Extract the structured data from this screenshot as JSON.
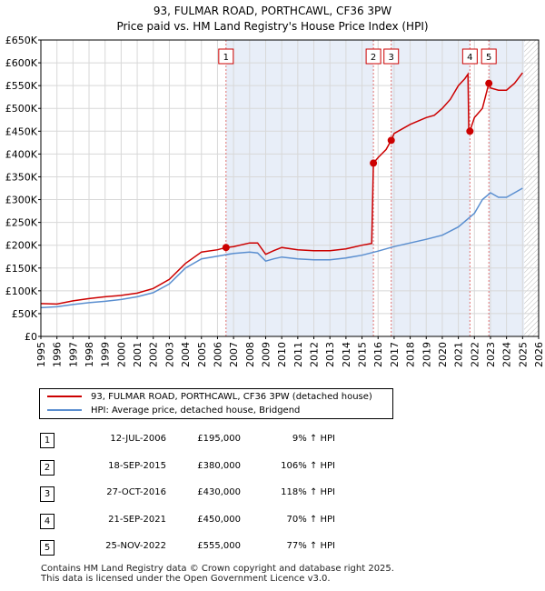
{
  "chart_data": {
    "type": "line",
    "title_lines": [
      "93, FULMAR ROAD, PORTHCAWL, CF36 3PW",
      "Price paid vs. HM Land Registry's House Price Index (HPI)"
    ],
    "xlim": [
      1995,
      2026
    ],
    "ylim": [
      0,
      650000
    ],
    "y_ticks": [
      0,
      50000,
      100000,
      150000,
      200000,
      250000,
      300000,
      350000,
      400000,
      450000,
      500000,
      550000,
      600000,
      650000
    ],
    "y_tick_labels": [
      "£0",
      "£50K",
      "£100K",
      "£150K",
      "£200K",
      "£250K",
      "£300K",
      "£350K",
      "£400K",
      "£450K",
      "£500K",
      "£550K",
      "£600K",
      "£650K"
    ],
    "x_ticks": [
      1995,
      1996,
      1997,
      1998,
      1999,
      2000,
      2001,
      2002,
      2003,
      2004,
      2005,
      2006,
      2007,
      2008,
      2009,
      2010,
      2011,
      2012,
      2013,
      2014,
      2015,
      2016,
      2017,
      2018,
      2019,
      2020,
      2021,
      2022,
      2023,
      2024,
      2025,
      2026
    ],
    "shaded_ranges": [
      [
        2006.53,
        2015.71
      ],
      [
        2016.82,
        2021.72
      ],
      [
        2022.9,
        2025.1
      ]
    ],
    "future_hatch_start": 2025.1,
    "series": [
      {
        "name": "93, FULMAR ROAD, PORTHCAWL, CF36 3PW (detached house)",
        "color": "#cc0000",
        "points": [
          [
            1995.0,
            72000
          ],
          [
            1996.0,
            71000
          ],
          [
            1997.0,
            78000
          ],
          [
            1998.0,
            83000
          ],
          [
            1999.0,
            87000
          ],
          [
            2000.0,
            90000
          ],
          [
            2001.0,
            95000
          ],
          [
            2002.0,
            105000
          ],
          [
            2003.0,
            125000
          ],
          [
            2004.0,
            160000
          ],
          [
            2005.0,
            185000
          ],
          [
            2006.0,
            190000
          ],
          [
            2006.53,
            195000
          ],
          [
            2007.0,
            197000
          ],
          [
            2008.0,
            205000
          ],
          [
            2008.5,
            205000
          ],
          [
            2009.0,
            180000
          ],
          [
            2009.5,
            188000
          ],
          [
            2010.0,
            195000
          ],
          [
            2011.0,
            190000
          ],
          [
            2012.0,
            188000
          ],
          [
            2013.0,
            188000
          ],
          [
            2014.0,
            192000
          ],
          [
            2015.0,
            200000
          ],
          [
            2015.6,
            204000
          ],
          [
            2015.71,
            380000
          ],
          [
            2016.0,
            392000
          ],
          [
            2016.5,
            410000
          ],
          [
            2016.82,
            430000
          ],
          [
            2017.0,
            445000
          ],
          [
            2018.0,
            465000
          ],
          [
            2019.0,
            480000
          ],
          [
            2019.5,
            485000
          ],
          [
            2020.0,
            500000
          ],
          [
            2020.5,
            520000
          ],
          [
            2021.0,
            550000
          ],
          [
            2021.4,
            565000
          ],
          [
            2021.6,
            575000
          ],
          [
            2021.65,
            450000
          ],
          [
            2021.72,
            450000
          ],
          [
            2022.0,
            480000
          ],
          [
            2022.5,
            500000
          ],
          [
            2022.9,
            555000
          ],
          [
            2023.0,
            545000
          ],
          [
            2023.5,
            540000
          ],
          [
            2024.0,
            540000
          ],
          [
            2024.5,
            555000
          ],
          [
            2025.0,
            578000
          ]
        ]
      },
      {
        "name": "HPI: Average price, detached house, Bridgend",
        "color": "#5b8fd0",
        "points": [
          [
            1995.0,
            63000
          ],
          [
            1996.0,
            65000
          ],
          [
            1997.0,
            70000
          ],
          [
            1998.0,
            74000
          ],
          [
            1999.0,
            77000
          ],
          [
            2000.0,
            81000
          ],
          [
            2001.0,
            87000
          ],
          [
            2002.0,
            96000
          ],
          [
            2003.0,
            115000
          ],
          [
            2004.0,
            150000
          ],
          [
            2005.0,
            170000
          ],
          [
            2006.0,
            176000
          ],
          [
            2007.0,
            182000
          ],
          [
            2008.0,
            185000
          ],
          [
            2008.5,
            183000
          ],
          [
            2009.0,
            165000
          ],
          [
            2009.5,
            170000
          ],
          [
            2010.0,
            174000
          ],
          [
            2011.0,
            170000
          ],
          [
            2012.0,
            168000
          ],
          [
            2013.0,
            168000
          ],
          [
            2014.0,
            172000
          ],
          [
            2015.0,
            178000
          ],
          [
            2016.0,
            187000
          ],
          [
            2017.0,
            197000
          ],
          [
            2018.0,
            205000
          ],
          [
            2019.0,
            213000
          ],
          [
            2020.0,
            222000
          ],
          [
            2021.0,
            240000
          ],
          [
            2022.0,
            270000
          ],
          [
            2022.5,
            300000
          ],
          [
            2023.0,
            315000
          ],
          [
            2023.5,
            305000
          ],
          [
            2024.0,
            305000
          ],
          [
            2024.5,
            315000
          ],
          [
            2025.0,
            325000
          ]
        ]
      }
    ],
    "markers": [
      {
        "label": "1",
        "x": 2006.53,
        "y": 195000
      },
      {
        "label": "2",
        "x": 2015.71,
        "y": 380000
      },
      {
        "label": "3",
        "x": 2016.82,
        "y": 430000
      },
      {
        "label": "4",
        "x": 2021.72,
        "y": 450000
      },
      {
        "label": "5",
        "x": 2022.9,
        "y": 555000
      }
    ]
  },
  "legend": {
    "property_label": "93, FULMAR ROAD, PORTHCAWL, CF36 3PW (detached house)",
    "hpi_label": "HPI: Average price, detached house, Bridgend",
    "property_color": "#cc0000",
    "hpi_color": "#5b8fd0"
  },
  "transactions": [
    {
      "num": "1",
      "date": "12-JUL-2006",
      "price": "£195,000",
      "hpi": "9% ↑ HPI"
    },
    {
      "num": "2",
      "date": "18-SEP-2015",
      "price": "£380,000",
      "hpi": "106% ↑ HPI"
    },
    {
      "num": "3",
      "date": "27-OCT-2016",
      "price": "£430,000",
      "hpi": "118% ↑ HPI"
    },
    {
      "num": "4",
      "date": "21-SEP-2021",
      "price": "£450,000",
      "hpi": "70% ↑ HPI"
    },
    {
      "num": "5",
      "date": "25-NOV-2022",
      "price": "£555,000",
      "hpi": "77% ↑ HPI"
    }
  ],
  "footer": {
    "line1": "Contains HM Land Registry data © Crown copyright and database right 2025.",
    "line2": "This data is licensed under the Open Government Licence v3.0."
  }
}
